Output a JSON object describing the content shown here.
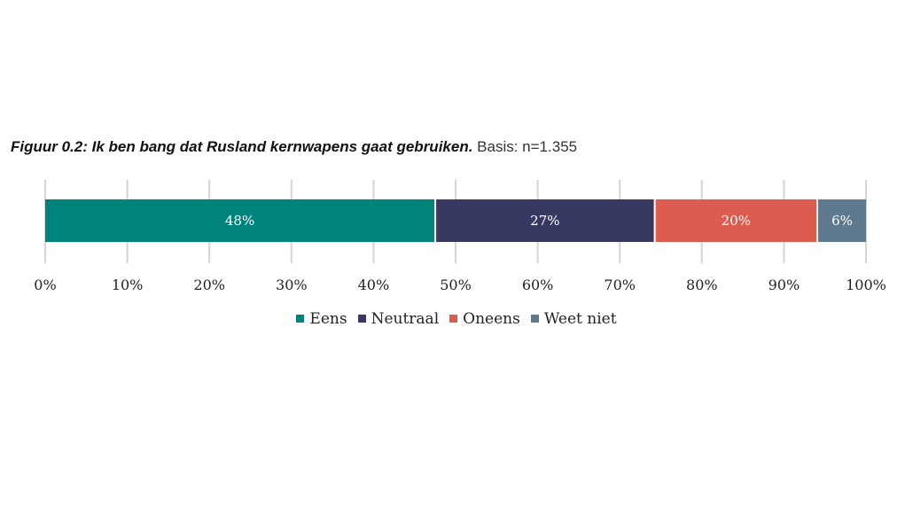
{
  "title": {
    "main": "Figuur 0.2: Ik ben bang dat Rusland kernwapens gaat gebruiken.",
    "basis": " Basis: n=1.355"
  },
  "chart_data": {
    "type": "bar",
    "orientation": "horizontal-stacked",
    "xlim": [
      0,
      100
    ],
    "grid": true,
    "legend_position": "bottom-center",
    "tick_labels": [
      "0%",
      "10%",
      "20%",
      "30%",
      "40%",
      "50%",
      "60%",
      "70%",
      "80%",
      "90%",
      "100%"
    ],
    "series": [
      {
        "name": "Eens",
        "value": 48,
        "label": "48%",
        "color": "#00837a"
      },
      {
        "name": "Neutraal",
        "value": 27,
        "label": "27%",
        "color": "#383963"
      },
      {
        "name": "Oneens",
        "value": 20,
        "label": "20%",
        "color": "#dd5c50"
      },
      {
        "name": "Weet niet",
        "value": 6,
        "label": "6%",
        "color": "#5f7a8f"
      }
    ]
  }
}
